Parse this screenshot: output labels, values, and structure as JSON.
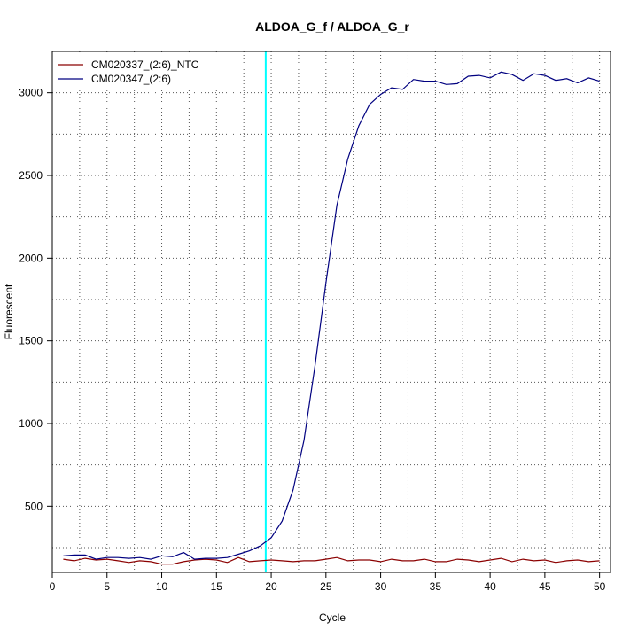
{
  "chart_data": {
    "type": "line",
    "title": "ALDOA_G_f / ALDOA_G_r",
    "xlabel": "Cycle",
    "ylabel": "Fluorescent",
    "xlim": [
      0,
      51
    ],
    "ylim": [
      100,
      3250
    ],
    "x_ticks": [
      0,
      5,
      10,
      15,
      20,
      25,
      30,
      35,
      40,
      45,
      50
    ],
    "y_ticks": [
      500,
      1000,
      1500,
      2000,
      2500,
      3000
    ],
    "grid": "dotted",
    "legend_position": "top-left",
    "threshold_cycle": 19.5,
    "threshold_color": "#00ffff",
    "series": [
      {
        "name": "CM020337_(2:6)_NTC",
        "color": "#8b0000",
        "x": [
          1,
          2,
          3,
          4,
          5,
          6,
          7,
          8,
          9,
          10,
          11,
          12,
          13,
          14,
          15,
          16,
          17,
          18,
          19,
          20,
          21,
          22,
          23,
          24,
          25,
          26,
          27,
          28,
          29,
          30,
          31,
          32,
          33,
          34,
          35,
          36,
          37,
          38,
          39,
          40,
          41,
          42,
          43,
          44,
          45,
          46,
          47,
          48,
          49,
          50
        ],
        "values": [
          180,
          170,
          185,
          175,
          180,
          170,
          160,
          170,
          165,
          150,
          150,
          165,
          175,
          180,
          175,
          160,
          190,
          165,
          170,
          175,
          170,
          165,
          170,
          170,
          180,
          190,
          170,
          175,
          175,
          165,
          180,
          170,
          170,
          180,
          165,
          165,
          180,
          175,
          165,
          175,
          185,
          165,
          180,
          170,
          175,
          160,
          170,
          175,
          165,
          170
        ]
      },
      {
        "name": "CM020347_(2:6)",
        "color": "#000080",
        "x": [
          1,
          2,
          3,
          4,
          5,
          6,
          7,
          8,
          9,
          10,
          11,
          12,
          13,
          14,
          15,
          16,
          17,
          18,
          19,
          20,
          21,
          22,
          23,
          24,
          25,
          26,
          27,
          28,
          29,
          30,
          31,
          32,
          33,
          34,
          35,
          36,
          37,
          38,
          39,
          40,
          41,
          42,
          43,
          44,
          45,
          46,
          47,
          48,
          49,
          50
        ],
        "values": [
          200,
          205,
          205,
          180,
          190,
          190,
          185,
          190,
          180,
          200,
          195,
          220,
          180,
          185,
          185,
          190,
          210,
          230,
          260,
          310,
          410,
          600,
          900,
          1350,
          1850,
          2320,
          2600,
          2800,
          2930,
          2990,
          3030,
          3020,
          3080,
          3070,
          3070,
          3050,
          3055,
          3100,
          3105,
          3090,
          3125,
          3110,
          3075,
          3115,
          3105,
          3075,
          3085,
          3060,
          3090,
          3070
        ]
      }
    ]
  }
}
